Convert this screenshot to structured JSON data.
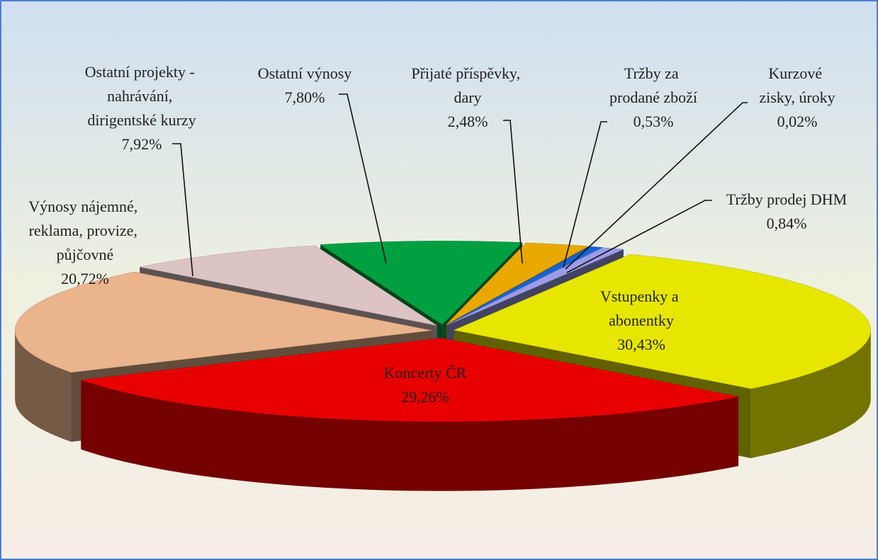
{
  "chart_data": {
    "type": "pie",
    "categories": [
      "Vstupenky a abonentky",
      "Koncerty ČR",
      "Výnosy nájemné, reklama, provize, půjčovné",
      "Ostatní projekty - nahrávání, dirigentské kurzy",
      "Ostatní výnosy",
      "Přijaté příspěvky, dary",
      "Tržby za prodané zboží",
      "Kurzové zisky, úroky",
      "Tržby prodej DHM"
    ],
    "values": [
      30.43,
      29.26,
      20.72,
      7.92,
      7.8,
      2.48,
      0.53,
      0.02,
      0.84
    ],
    "value_labels": [
      "30,43%",
      "29,26%",
      "20,72%",
      "7,92%",
      "7,80%",
      "2,48%",
      "0,53%",
      "0,02%",
      "0,84%"
    ],
    "colors": [
      "#e6e600",
      "#e80000",
      "#eab48c",
      "#dcc4c4",
      "#00a040",
      "#e8a800",
      "#1464d8",
      "#b0b0f0",
      "#9c9ce8"
    ]
  }
}
